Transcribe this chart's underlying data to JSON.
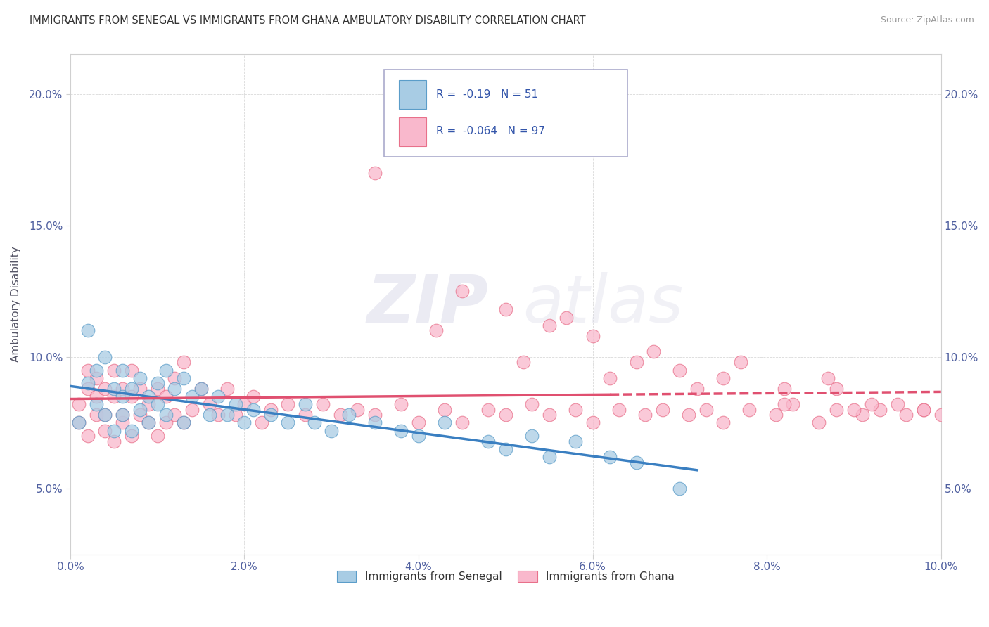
{
  "title": "IMMIGRANTS FROM SENEGAL VS IMMIGRANTS FROM GHANA AMBULATORY DISABILITY CORRELATION CHART",
  "source": "Source: ZipAtlas.com",
  "ylabel": "Ambulatory Disability",
  "legend_label1": "Immigrants from Senegal",
  "legend_label2": "Immigrants from Ghana",
  "r1": -0.19,
  "n1": 51,
  "r2": -0.064,
  "n2": 97,
  "xlim": [
    0.0,
    0.1
  ],
  "ylim": [
    0.025,
    0.215
  ],
  "xticks": [
    0.0,
    0.02,
    0.04,
    0.06,
    0.08,
    0.1
  ],
  "yticks": [
    0.05,
    0.1,
    0.15,
    0.2
  ],
  "color_senegal": "#a8cce4",
  "color_ghana": "#f9b8cc",
  "color_senegal_edge": "#5b9dc9",
  "color_ghana_edge": "#e8708a",
  "color_senegal_line": "#3a7fc1",
  "color_ghana_line": "#e05070",
  "watermark_zip": "ZIP",
  "watermark_atlas": "atlas",
  "senegal_x": [
    0.001,
    0.002,
    0.002,
    0.003,
    0.003,
    0.004,
    0.004,
    0.005,
    0.005,
    0.006,
    0.006,
    0.006,
    0.007,
    0.007,
    0.008,
    0.008,
    0.009,
    0.009,
    0.01,
    0.01,
    0.011,
    0.011,
    0.012,
    0.013,
    0.013,
    0.014,
    0.015,
    0.016,
    0.017,
    0.018,
    0.019,
    0.02,
    0.021,
    0.023,
    0.025,
    0.027,
    0.028,
    0.03,
    0.032,
    0.035,
    0.038,
    0.04,
    0.043,
    0.048,
    0.05,
    0.053,
    0.055,
    0.058,
    0.062,
    0.065,
    0.07
  ],
  "senegal_y": [
    0.075,
    0.11,
    0.09,
    0.095,
    0.082,
    0.1,
    0.078,
    0.088,
    0.072,
    0.085,
    0.095,
    0.078,
    0.088,
    0.072,
    0.092,
    0.08,
    0.085,
    0.075,
    0.09,
    0.082,
    0.095,
    0.078,
    0.088,
    0.092,
    0.075,
    0.085,
    0.088,
    0.078,
    0.085,
    0.078,
    0.082,
    0.075,
    0.08,
    0.078,
    0.075,
    0.082,
    0.075,
    0.072,
    0.078,
    0.075,
    0.072,
    0.07,
    0.075,
    0.068,
    0.065,
    0.07,
    0.062,
    0.068,
    0.062,
    0.06,
    0.05
  ],
  "ghana_x": [
    0.001,
    0.001,
    0.002,
    0.002,
    0.002,
    0.003,
    0.003,
    0.003,
    0.004,
    0.004,
    0.004,
    0.005,
    0.005,
    0.005,
    0.006,
    0.006,
    0.006,
    0.007,
    0.007,
    0.007,
    0.008,
    0.008,
    0.009,
    0.009,
    0.01,
    0.01,
    0.011,
    0.011,
    0.012,
    0.012,
    0.013,
    0.013,
    0.014,
    0.015,
    0.016,
    0.017,
    0.018,
    0.019,
    0.02,
    0.021,
    0.022,
    0.023,
    0.025,
    0.027,
    0.029,
    0.031,
    0.033,
    0.035,
    0.038,
    0.04,
    0.043,
    0.045,
    0.048,
    0.05,
    0.053,
    0.055,
    0.058,
    0.06,
    0.063,
    0.066,
    0.068,
    0.071,
    0.073,
    0.075,
    0.078,
    0.081,
    0.083,
    0.086,
    0.088,
    0.091,
    0.093,
    0.096,
    0.098,
    0.1,
    0.035,
    0.045,
    0.05,
    0.055,
    0.06,
    0.065,
    0.07,
    0.075,
    0.082,
    0.088,
    0.092,
    0.042,
    0.052,
    0.062,
    0.072,
    0.082,
    0.09,
    0.095,
    0.098,
    0.057,
    0.067,
    0.077,
    0.087
  ],
  "ghana_y": [
    0.075,
    0.082,
    0.07,
    0.088,
    0.095,
    0.078,
    0.085,
    0.092,
    0.072,
    0.088,
    0.078,
    0.068,
    0.085,
    0.095,
    0.075,
    0.088,
    0.078,
    0.07,
    0.085,
    0.095,
    0.078,
    0.088,
    0.075,
    0.082,
    0.07,
    0.088,
    0.075,
    0.085,
    0.078,
    0.092,
    0.075,
    0.098,
    0.08,
    0.088,
    0.082,
    0.078,
    0.088,
    0.078,
    0.082,
    0.085,
    0.075,
    0.08,
    0.082,
    0.078,
    0.082,
    0.078,
    0.08,
    0.078,
    0.082,
    0.075,
    0.08,
    0.075,
    0.08,
    0.078,
    0.082,
    0.078,
    0.08,
    0.075,
    0.08,
    0.078,
    0.08,
    0.078,
    0.08,
    0.075,
    0.08,
    0.078,
    0.082,
    0.075,
    0.08,
    0.078,
    0.08,
    0.078,
    0.08,
    0.078,
    0.17,
    0.125,
    0.118,
    0.112,
    0.108,
    0.098,
    0.095,
    0.092,
    0.088,
    0.088,
    0.082,
    0.11,
    0.098,
    0.092,
    0.088,
    0.082,
    0.08,
    0.082,
    0.08,
    0.115,
    0.102,
    0.098,
    0.092
  ]
}
